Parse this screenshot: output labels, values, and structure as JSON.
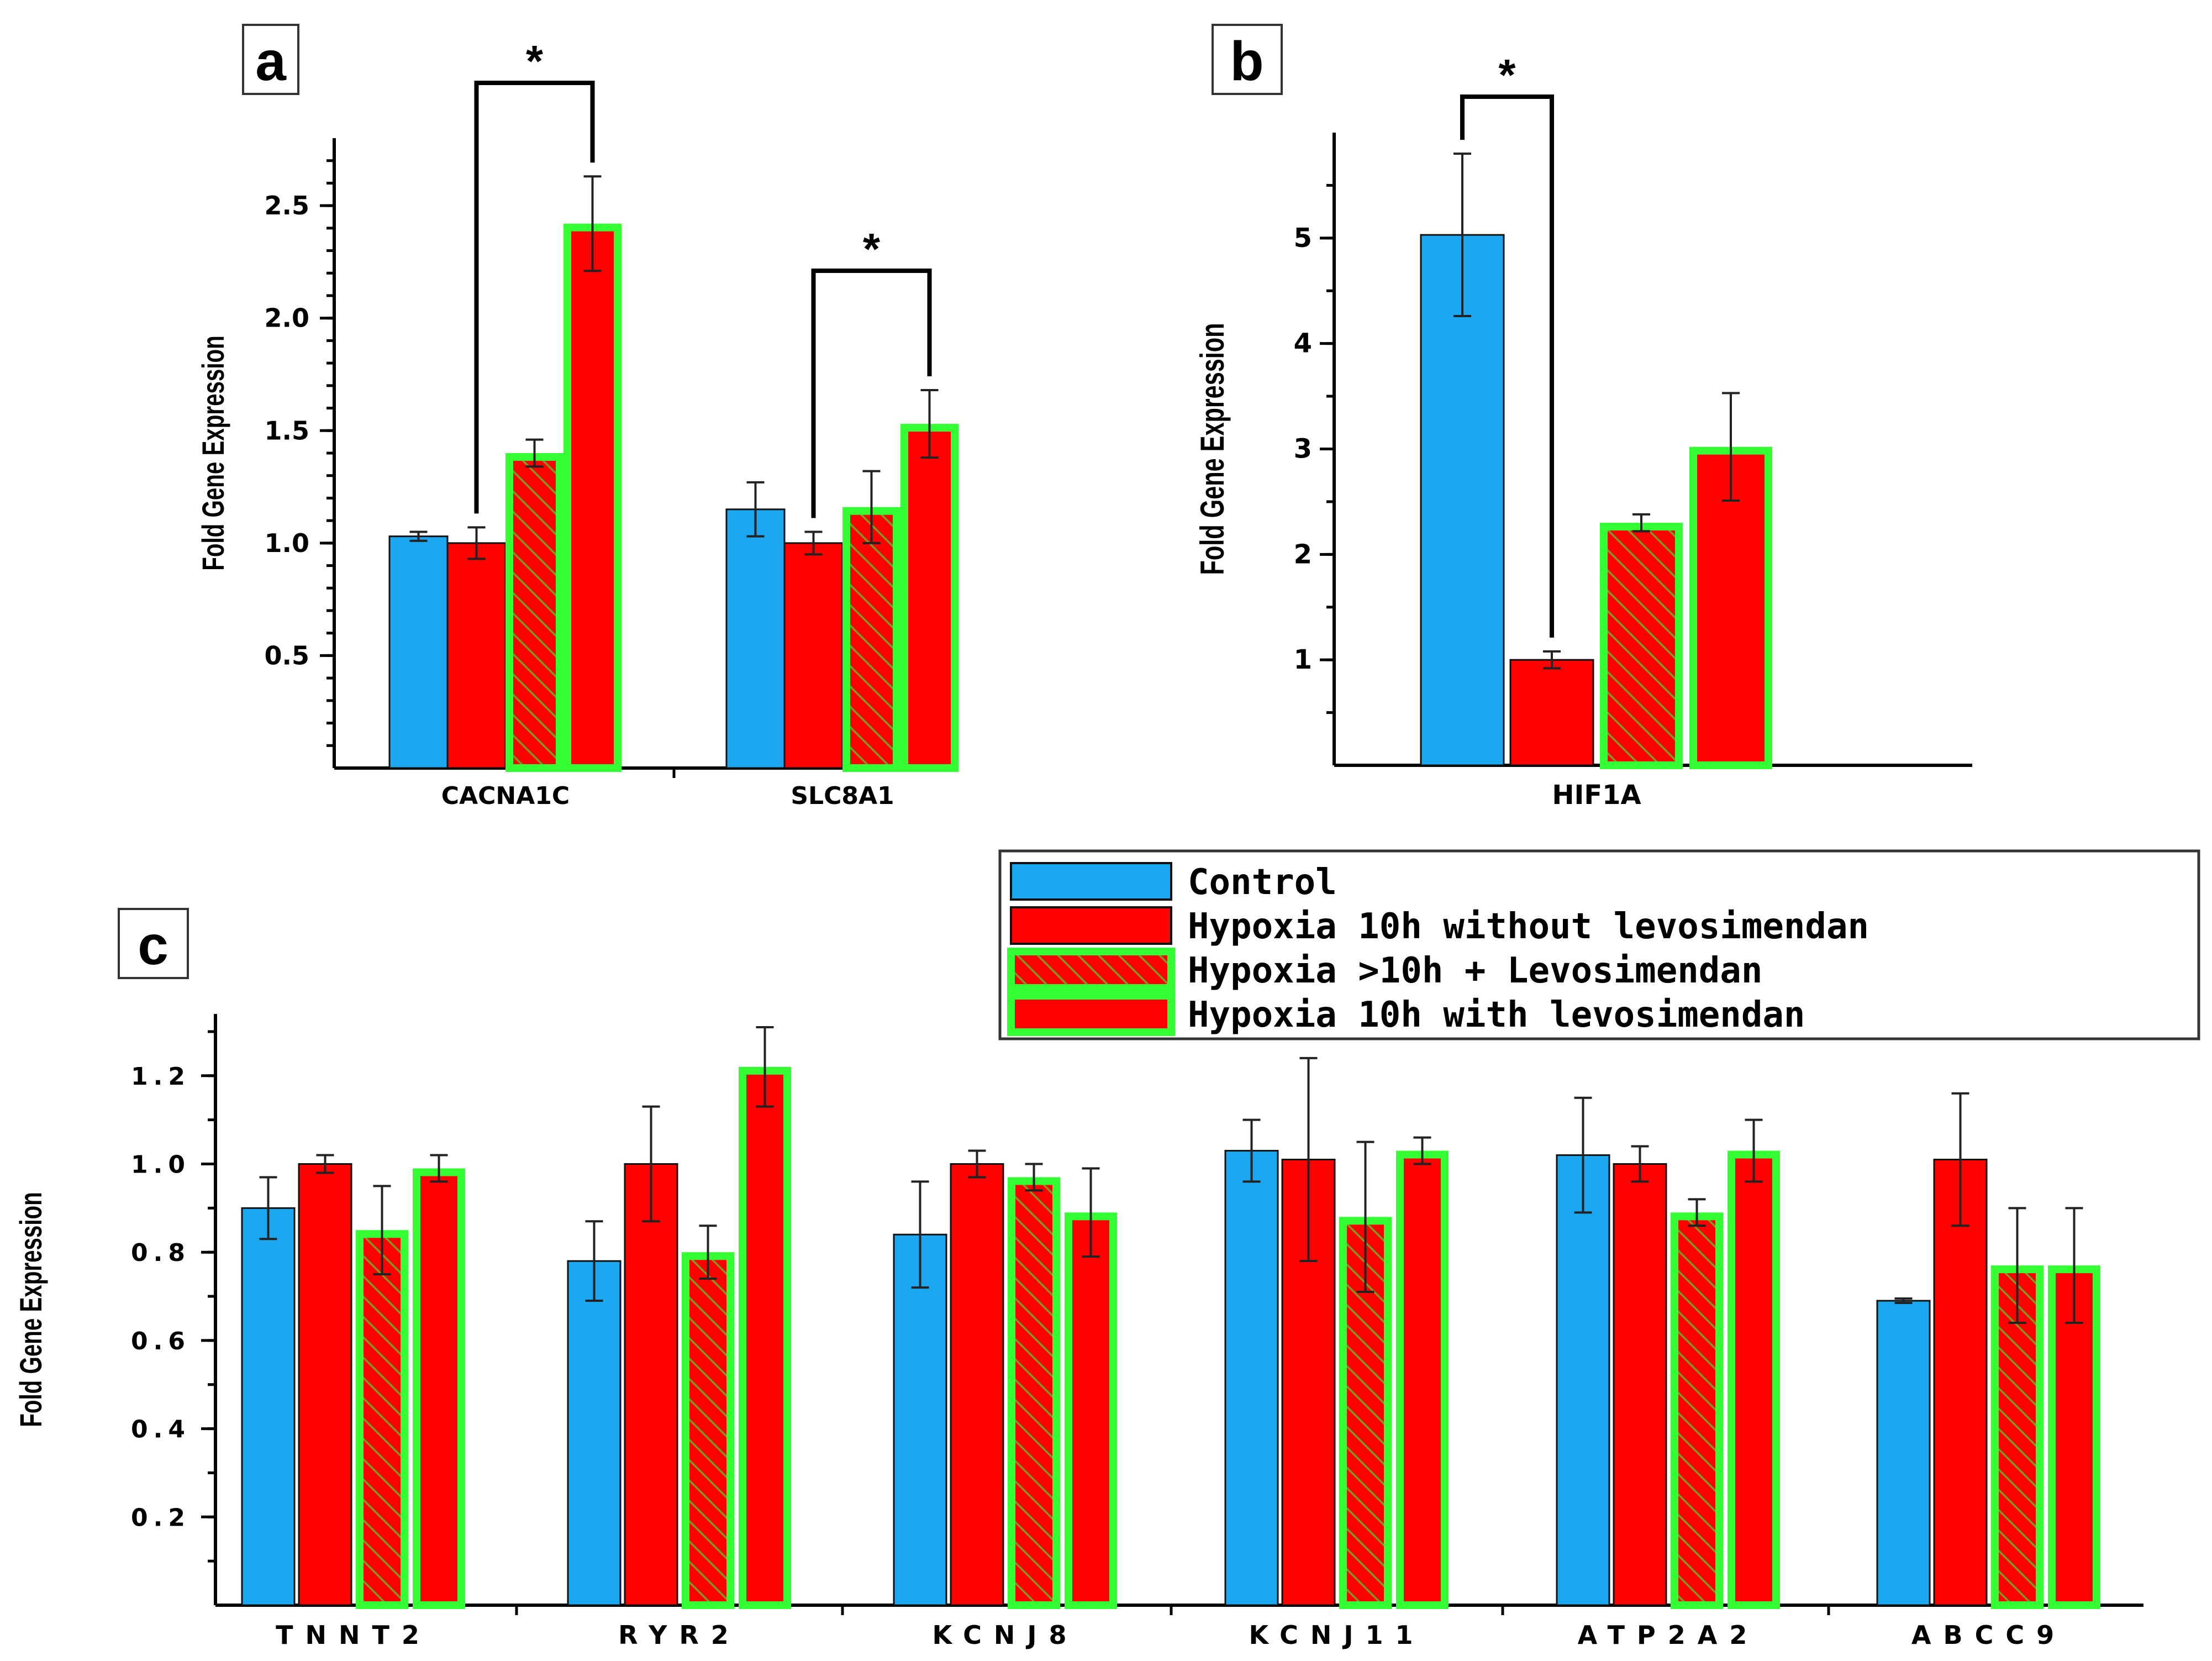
{
  "panels": [
    {
      "id": "a",
      "label": "a"
    },
    {
      "id": "b",
      "label": "b"
    },
    {
      "id": "c",
      "label": "c"
    }
  ],
  "colors": {
    "control": "#1ca8f0",
    "hypoxia": "#fe0000",
    "border_green": "#33ff33",
    "hatch": "#80a020"
  },
  "legend": {
    "items": [
      {
        "label": "Control",
        "style": "control"
      },
      {
        "label": "Hypoxia 10h without levosimendan",
        "style": "hypoxia"
      },
      {
        "label": "Hypoxia >10h + Levosimendan",
        "style": "hatched"
      },
      {
        "label": "Hypoxia 10h with levosimendan",
        "style": "hypoxia-green"
      }
    ]
  },
  "chart_data": [
    {
      "panel": "a",
      "type": "bar",
      "ylabel": "Fold Gene Expression",
      "ylim": [
        0,
        2.8
      ],
      "yticks": [
        "0.5",
        "1.0",
        "1.5",
        "2.0",
        "2.5"
      ],
      "categories": [
        "CACNA1C",
        "SLC8A1"
      ],
      "series": [
        {
          "name": "Control",
          "values": [
            1.03,
            1.15
          ],
          "errors": [
            0.02,
            0.12
          ]
        },
        {
          "name": "Hypoxia 10h without levosimendan",
          "values": [
            1.0,
            1.0
          ],
          "errors": [
            0.07,
            0.05
          ]
        },
        {
          "name": "Hypoxia >10h + Levosimendan",
          "values": [
            1.4,
            1.16
          ],
          "errors": [
            0.06,
            0.16
          ]
        },
        {
          "name": "Hypoxia 10h with levosimendan",
          "values": [
            2.42,
            1.53
          ],
          "errors": [
            0.21,
            0.15
          ]
        }
      ],
      "significance": [
        {
          "category": "CACNA1C",
          "from": 1,
          "to": 3,
          "label": "*"
        },
        {
          "category": "SLC8A1",
          "from": 1,
          "to": 3,
          "label": "*"
        }
      ]
    },
    {
      "panel": "b",
      "type": "bar",
      "ylabel": "Fold Gene Expression",
      "ylim": [
        0,
        6
      ],
      "yticks": [
        "1",
        "2",
        "3",
        "4",
        "5"
      ],
      "categories": [
        "HIF1A"
      ],
      "series": [
        {
          "name": "Control",
          "values": [
            5.03
          ],
          "errors": [
            0.77
          ]
        },
        {
          "name": "Hypoxia 10h without levosimendan",
          "values": [
            1.0
          ],
          "errors": [
            0.08
          ]
        },
        {
          "name": "Hypoxia >10h + Levosimendan",
          "values": [
            2.3
          ],
          "errors": [
            0.08
          ]
        },
        {
          "name": "Hypoxia 10h with levosimendan",
          "values": [
            3.02
          ],
          "errors": [
            0.51
          ]
        }
      ],
      "significance": [
        {
          "category": "HIF1A",
          "from": 0,
          "to": 1,
          "label": "*"
        }
      ]
    },
    {
      "panel": "c",
      "type": "bar",
      "ylabel": "Fold Gene Expression",
      "ylim": [
        0,
        1.34
      ],
      "yticks": [
        "0.2",
        "0.4",
        "0.6",
        "0.8",
        "1.0",
        "1.2"
      ],
      "categories": [
        "TNNT2",
        "RYR2",
        "KCNJ8",
        "KCNJ11",
        "ATP2A2",
        "ABCC9"
      ],
      "series": [
        {
          "name": "Control",
          "values": [
            0.9,
            0.78,
            0.84,
            1.03,
            1.02,
            0.69
          ],
          "errors": [
            0.07,
            0.09,
            0.12,
            0.07,
            0.13,
            0.005
          ]
        },
        {
          "name": "Hypoxia 10h without levosimendan",
          "values": [
            1.0,
            1.0,
            1.0,
            1.01,
            1.0,
            1.01
          ],
          "errors": [
            0.02,
            0.13,
            0.03,
            0.23,
            0.04,
            0.15
          ]
        },
        {
          "name": "Hypoxia >10h + Levosimendan",
          "values": [
            0.85,
            0.8,
            0.97,
            0.88,
            0.89,
            0.77
          ],
          "errors": [
            0.1,
            0.06,
            0.03,
            0.17,
            0.03,
            0.13
          ]
        },
        {
          "name": "Hypoxia 10h with levosimendan",
          "values": [
            0.99,
            1.22,
            0.89,
            1.03,
            1.03,
            0.77
          ],
          "errors": [
            0.03,
            0.09,
            0.1,
            0.03,
            0.07,
            0.13
          ]
        }
      ]
    }
  ]
}
